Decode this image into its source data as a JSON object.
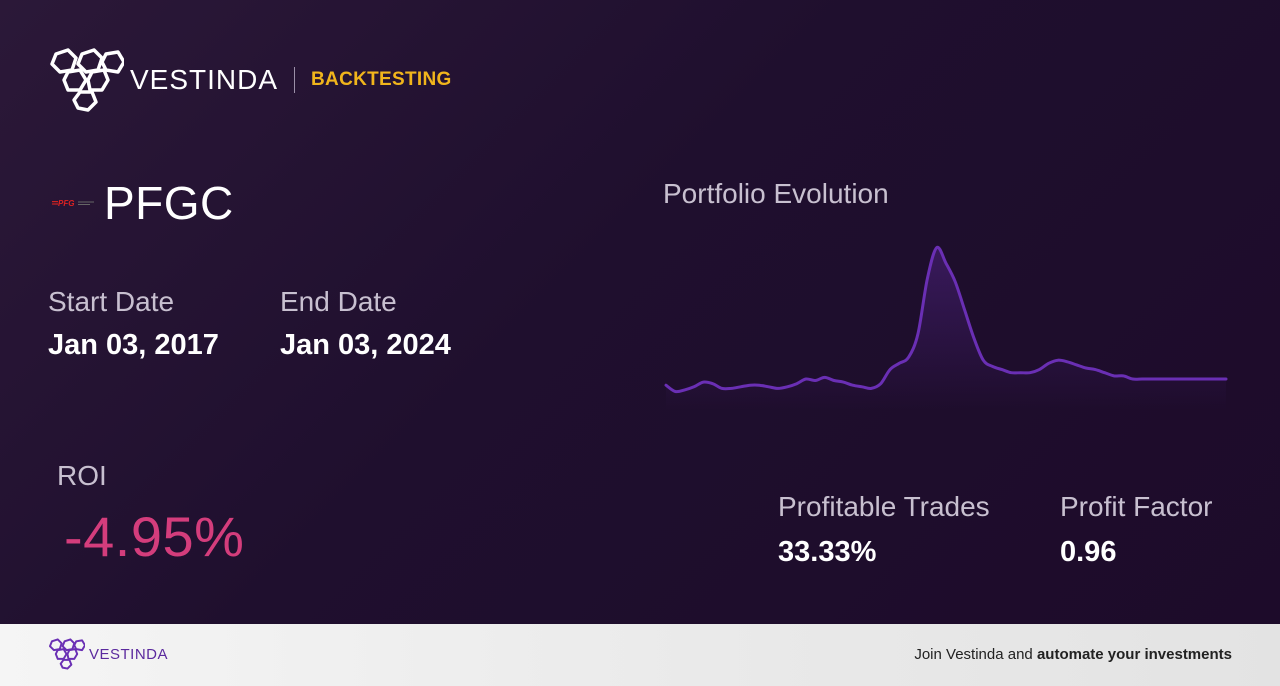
{
  "brand": {
    "name": "VESTINDA",
    "tag": "BACKTESTING",
    "logo_icon": "hexagon-cluster-icon"
  },
  "ticker": {
    "symbol": "PFGC",
    "logo_icon": "pfg-logo-icon"
  },
  "start_date": {
    "label": "Start Date",
    "value": "Jan 03, 2017"
  },
  "end_date": {
    "label": "End Date",
    "value": "Jan 03, 2024"
  },
  "roi": {
    "label": "ROI",
    "value": "-4.95%"
  },
  "portfolio": {
    "title": "Portfolio Evolution"
  },
  "stats": {
    "profitable_trades": {
      "label": "Profitable Trades",
      "value": "33.33%"
    },
    "profit_factor": {
      "label": "Profit Factor",
      "value": "0.96"
    }
  },
  "footer": {
    "brand_name": "VESTINDA",
    "cta_prefix": "Join Vestinda and ",
    "cta_bold": "automate your investments"
  },
  "colors": {
    "accent": "#f1b51c",
    "roi_negative": "#d43d7c",
    "line": "#6a2fb4",
    "footer_brand": "#5b2a9e"
  },
  "chart_data": {
    "type": "area",
    "title": "Portfolio Evolution",
    "x": [
      0,
      1,
      2,
      3,
      4,
      5,
      6,
      7,
      8,
      9,
      10,
      11,
      12,
      13,
      14,
      15,
      16,
      17,
      18,
      19,
      20,
      21,
      22,
      23,
      24,
      25,
      26,
      27,
      28,
      29,
      30,
      31,
      32,
      33,
      34,
      35,
      36,
      37,
      38,
      39,
      40,
      41,
      42,
      43,
      44,
      45,
      46,
      47,
      48,
      49,
      50,
      51,
      52,
      53,
      54,
      55,
      56,
      57,
      58,
      59,
      60
    ],
    "values": [
      62,
      58,
      59,
      61,
      64,
      63,
      60,
      60,
      61,
      62,
      62,
      61,
      60,
      61,
      63,
      66,
      65,
      67,
      65,
      64,
      62,
      61,
      60,
      63,
      72,
      76,
      80,
      95,
      130,
      150,
      140,
      128,
      110,
      92,
      78,
      74,
      72,
      70,
      70,
      70,
      72,
      76,
      78,
      77,
      75,
      73,
      72,
      70,
      68,
      68,
      66,
      66,
      66,
      66,
      66,
      66,
      66,
      66,
      66,
      66,
      66
    ],
    "ylim": [
      50,
      160
    ],
    "grid": false,
    "legend": "none"
  }
}
